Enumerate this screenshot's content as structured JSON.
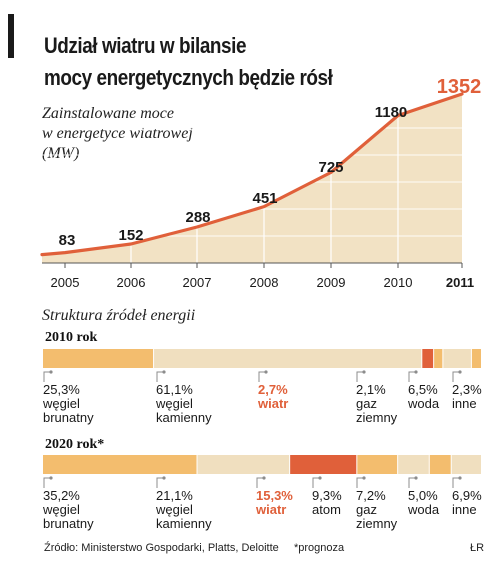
{
  "title": [
    "Udział wiatru w bilansie",
    "mocy energetycznych będzie rósł"
  ],
  "subtitle": [
    "Zainstalowane moce",
    "w energetyce wiatrowej",
    "(MW)"
  ],
  "colors": {
    "line": "#e0603a",
    "area": "#f2e2c4",
    "highlight_text": "#e0603a",
    "lignite": "#f3bd6e",
    "hard_coal": "#f0dfbf",
    "wind": "#e0603a",
    "grid": "#8c8c8c"
  },
  "chart_data": [
    {
      "type": "area",
      "x": [
        "2005",
        "2006",
        "2007",
        "2008",
        "2009",
        "2010",
        "2011"
      ],
      "values": [
        83,
        152,
        288,
        451,
        725,
        1180,
        1352
      ],
      "value_labels": [
        "83",
        "152",
        "288",
        "451",
        "725",
        "1180",
        "1352"
      ],
      "highlight_last": true,
      "ylim": [
        0,
        1400
      ],
      "grid": true
    },
    {
      "type": "bar",
      "stacked": true,
      "orientation": "horizontal",
      "row_label": "2010 rok",
      "categories": [
        {
          "name": "węgiel brunatny",
          "name_lines": [
            "węgiel",
            "brunatny"
          ],
          "value": 25.3,
          "label": "25,3%",
          "color": "#f3bd6e"
        },
        {
          "name": "węgiel kamienny",
          "name_lines": [
            "węgiel",
            "kamienny"
          ],
          "value": 61.1,
          "label": "61,1%",
          "color": "#f0dfbf"
        },
        {
          "name": "wiatr",
          "name_lines": [
            "wiatr"
          ],
          "value": 2.7,
          "label": "2,7%",
          "color": "#e0603a",
          "highlight": true
        },
        {
          "name": "gaz ziemny",
          "name_lines": [
            "gaz",
            "ziemny"
          ],
          "value": 2.1,
          "label": "2,1%",
          "color": "#f3bd6e"
        },
        {
          "name": "woda",
          "name_lines": [
            "woda"
          ],
          "value": 6.5,
          "label": "6,5%",
          "color": "#f0dfbf"
        },
        {
          "name": "inne",
          "name_lines": [
            "inne"
          ],
          "value": 2.3,
          "label": "2,3%",
          "color": "#f3bd6e"
        }
      ]
    },
    {
      "type": "bar",
      "stacked": true,
      "orientation": "horizontal",
      "row_label": "2020 rok*",
      "categories": [
        {
          "name": "węgiel brunatny",
          "name_lines": [
            "węgiel",
            "brunatny"
          ],
          "value": 35.2,
          "label": "35,2%",
          "color": "#f3bd6e"
        },
        {
          "name": "węgiel kamienny",
          "name_lines": [
            "węgiel",
            "kamienny"
          ],
          "value": 21.1,
          "label": "21,1%",
          "color": "#f0dfbf"
        },
        {
          "name": "wiatr",
          "name_lines": [
            "wiatr"
          ],
          "value": 15.3,
          "label": "15,3%",
          "color": "#e0603a",
          "highlight": true
        },
        {
          "name": "atom",
          "name_lines": [
            "atom"
          ],
          "value": 9.3,
          "label": "9,3%",
          "color": "#f3bd6e"
        },
        {
          "name": "gaz ziemny",
          "name_lines": [
            "gaz",
            "ziemny"
          ],
          "value": 7.2,
          "label": "7,2%",
          "color": "#f0dfbf"
        },
        {
          "name": "woda",
          "name_lines": [
            "woda"
          ],
          "value": 5.0,
          "label": "5,0%",
          "color": "#f3bd6e"
        },
        {
          "name": "inne",
          "name_lines": [
            "inne"
          ],
          "value": 6.9,
          "label": "6,9%",
          "color": "#f0dfbf"
        }
      ]
    }
  ],
  "breakdown_title": "Struktura źródeł energii",
  "footer": {
    "source": "Źródło: Ministerstwo Gospodarki, Platts, Deloitte",
    "note": "*prognoza",
    "credit": "ŁR"
  }
}
